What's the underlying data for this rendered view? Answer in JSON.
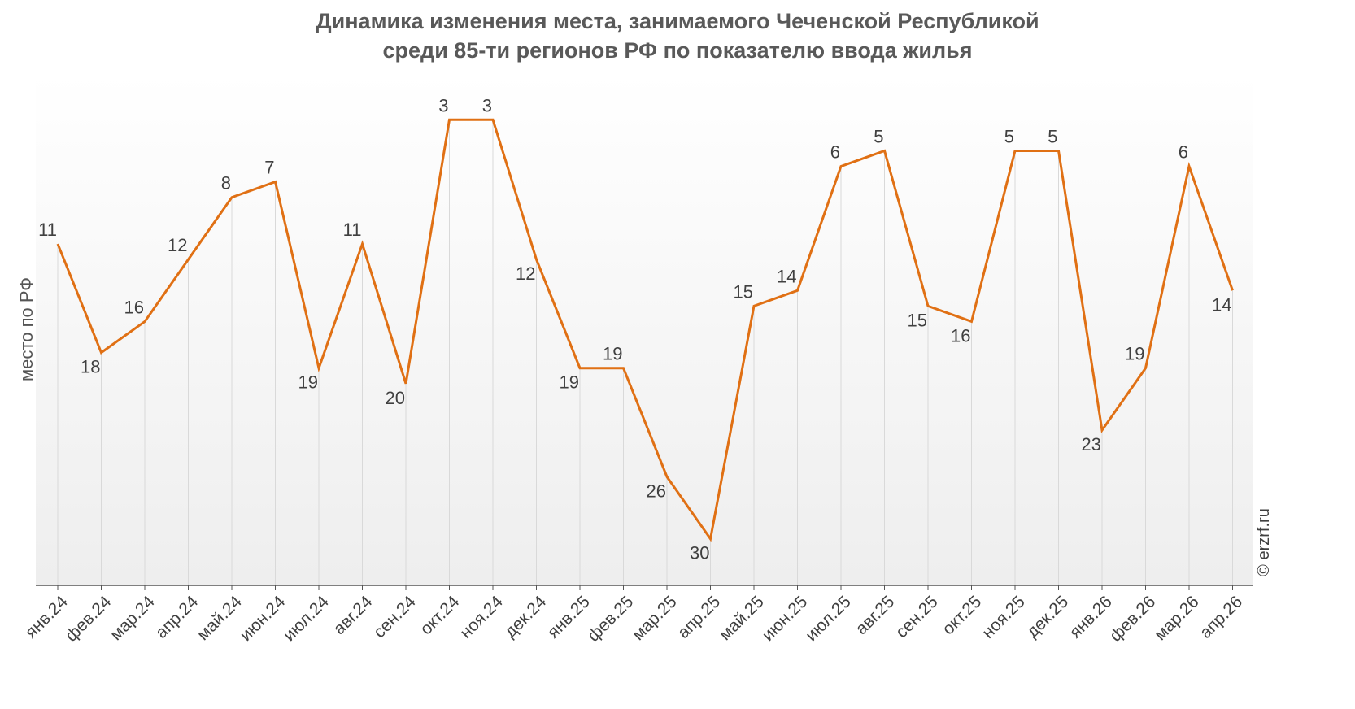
{
  "chart_data": {
    "type": "line",
    "title": [
      "Динамика изменения места, занимаемого Чеченской Республикой",
      "среди 85-ти регионов РФ по показателю ввода жилья"
    ],
    "ylabel": "место по РФ",
    "xlabel": "",
    "y_reversed": true,
    "ylim": [
      33,
      0
    ],
    "grid": false,
    "categories": [
      "янв.24",
      "фев.24",
      "мар.24",
      "апр.24",
      "май.24",
      "июн.24",
      "июл.24",
      "авг.24",
      "сен.24",
      "окт.24",
      "ноя.24",
      "дек.24",
      "янв.25",
      "фев.25",
      "мар.25",
      "апр.25",
      "май.25",
      "июн.25",
      "июл.25",
      "авг.25",
      "сен.25",
      "окт.25",
      "ноя.25",
      "дек.25",
      "янв.26",
      "фев.26",
      "мар.26",
      "апр.26"
    ],
    "series": [
      {
        "values": [
          11,
          18,
          16,
          12,
          8,
          7,
          19,
          11,
          20,
          3,
          3,
          12,
          19,
          19,
          26,
          30,
          15,
          14,
          6,
          5,
          15,
          16,
          5,
          5,
          23,
          19,
          6,
          14
        ]
      }
    ],
    "line_color": "#e07014",
    "credit": "© erzrf.ru"
  }
}
